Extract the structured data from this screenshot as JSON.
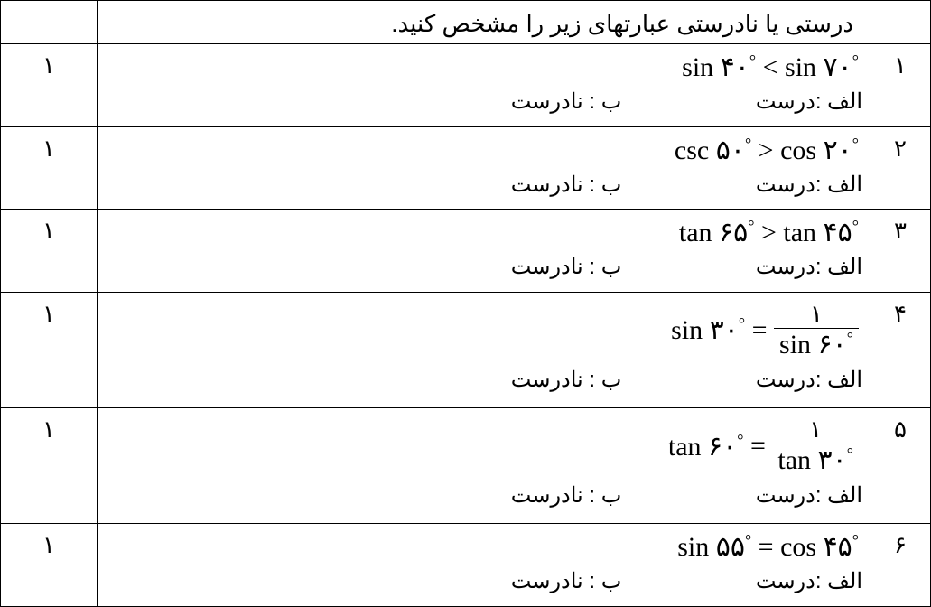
{
  "header": {
    "instruction": "درستی  یا نادرستی عبارتهای زیر را مشخص کنید."
  },
  "options": {
    "a_label": "الف :درست",
    "b_label": "ب : نادرست"
  },
  "numerals": {
    "one": "۱",
    "two": "۲",
    "three": "۳",
    "four": "۴",
    "five": "۵",
    "six": "۶"
  },
  "q1": {
    "score": "۱",
    "num": "۱",
    "expr_left": "sin ۴۰",
    "op": "<",
    "expr_right": "sin ۷۰"
  },
  "q2": {
    "score": "۱",
    "num": "۲",
    "expr_left": "csc ۵۰",
    "op": ">",
    "expr_right": "cos ۲۰"
  },
  "q3": {
    "score": "۱",
    "num": "۳",
    "expr_left": "tan ۶۵",
    "op": ">",
    "expr_right": "tan ۴۵"
  },
  "q4": {
    "score": "۱",
    "num": "۴",
    "expr_left": "sin ۳۰",
    "op": "=",
    "frac_num": "۱",
    "frac_den": "sin ۶۰"
  },
  "q5": {
    "score": "۱",
    "num": "۵",
    "expr_left": "tan ۶۰",
    "op": "=",
    "frac_num": "۱",
    "frac_den": "tan ۳۰"
  },
  "q6": {
    "score": "۱",
    "num": "۶",
    "expr_left": "sin ۵۵",
    "op": "=",
    "expr_right": "cos ۴۵"
  },
  "colors": {
    "border": "#000000",
    "background": "#ffffff",
    "text": "#000000"
  }
}
